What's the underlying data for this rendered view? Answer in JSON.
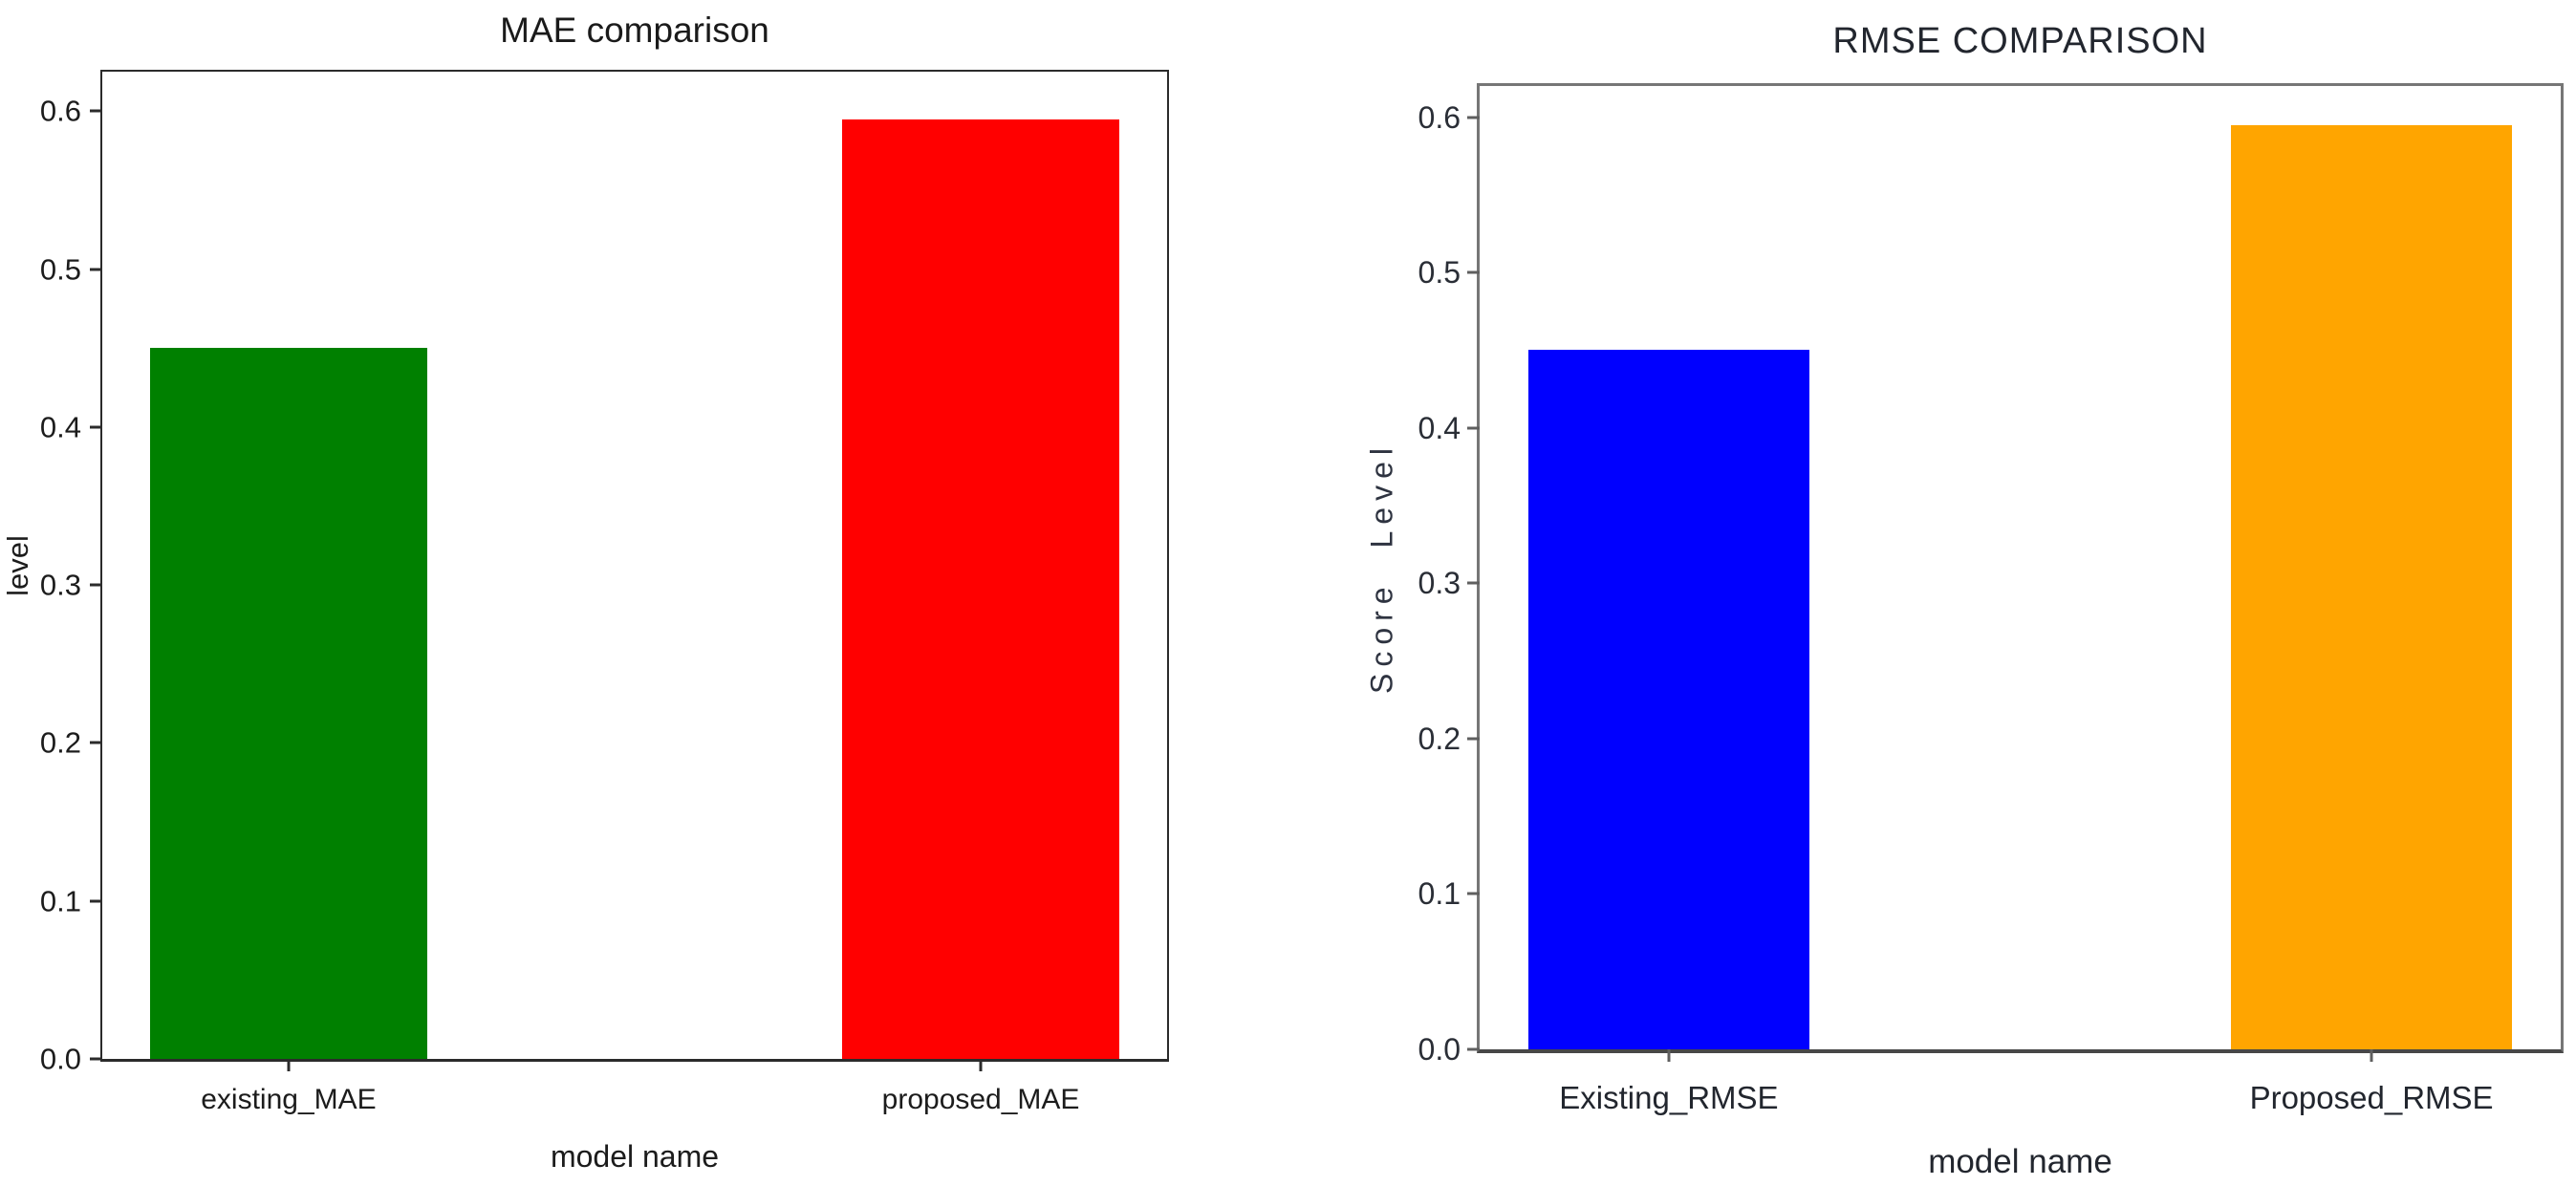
{
  "chart_data": [
    {
      "type": "bar",
      "title": "MAE comparison",
      "xlabel": "model name",
      "ylabel": "level",
      "categories": [
        "existing_MAE",
        "proposed_MAE"
      ],
      "values": [
        0.45,
        0.595
      ],
      "colors": [
        "#008000",
        "#ff0000"
      ],
      "yticks": [
        "0.0",
        "0.1",
        "0.2",
        "0.3",
        "0.4",
        "0.5",
        "0.6"
      ],
      "ylim": [
        0,
        0.625
      ],
      "grid": false,
      "legend": "none",
      "spine_color": "#2b2b2b"
    },
    {
      "type": "bar",
      "title": "RMSE COMPARISON",
      "xlabel": "model name",
      "ylabel": "Score Level",
      "categories": [
        "Existing_RMSE",
        "Proposed_RMSE"
      ],
      "values": [
        0.45,
        0.595
      ],
      "colors": [
        "#0000ff",
        "#ffa500"
      ],
      "yticks": [
        "0.0",
        "0.1",
        "0.2",
        "0.3",
        "0.4",
        "0.5",
        "0.6"
      ],
      "ylim": [
        0,
        0.62
      ],
      "grid": false,
      "legend": "none",
      "spine_color": "#767676"
    }
  ]
}
